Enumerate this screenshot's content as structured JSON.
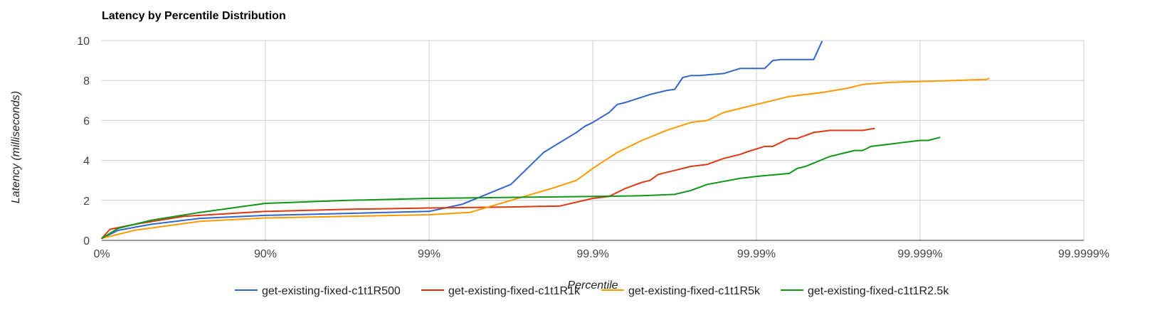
{
  "chart_data": {
    "type": "line",
    "title": "Latency by Percentile Distribution",
    "xlabel": "Percentile",
    "ylabel": "Latency (milliseconds)",
    "x_scale": "percentile-log (nines)",
    "x_tick_labels": [
      "0%",
      "90%",
      "99%",
      "99.9%",
      "99.99%",
      "99.999%",
      "99.9999%"
    ],
    "xlim": [
      0,
      6
    ],
    "ylim": [
      0,
      10
    ],
    "y_ticks": [
      0,
      2,
      4,
      6,
      8,
      10
    ],
    "grid": true,
    "legend_position": "bottom",
    "series": [
      {
        "name": "get-existing-fixed-c1t1R500",
        "color": "#3366cc",
        "x": [
          0,
          0.1,
          0.3,
          0.6,
          1,
          1.5,
          2,
          2.2,
          2.35,
          2.5,
          2.6,
          2.7,
          2.8,
          2.9,
          2.95,
          3.0,
          3.1,
          3.15,
          3.2,
          3.35,
          3.45,
          3.5,
          3.55,
          3.6,
          3.65,
          3.8,
          3.9,
          4.0,
          4.05,
          4.1,
          4.15,
          4.35,
          4.4
        ],
        "y": [
          0.1,
          0.5,
          0.8,
          1.1,
          1.25,
          1.35,
          1.45,
          1.8,
          2.3,
          2.8,
          3.6,
          4.4,
          4.9,
          5.4,
          5.7,
          5.9,
          6.4,
          6.8,
          6.9,
          7.3,
          7.5,
          7.55,
          8.15,
          8.25,
          8.25,
          8.35,
          8.6,
          8.6,
          8.6,
          9.0,
          9.05,
          9.05,
          9.95
        ]
      },
      {
        "name": "get-existing-fixed-c1t1R1k",
        "color": "#dc3912",
        "x": [
          0,
          0.05,
          0.2,
          0.5,
          1,
          1.5,
          2,
          2.5,
          2.8,
          3.0,
          3.1,
          3.2,
          3.3,
          3.35,
          3.4,
          3.5,
          3.6,
          3.7,
          3.8,
          3.9,
          3.95,
          4.05,
          4.1,
          4.2,
          4.25,
          4.35,
          4.45,
          4.65,
          4.72
        ],
        "y": [
          0.1,
          0.55,
          0.8,
          1.2,
          1.45,
          1.55,
          1.62,
          1.67,
          1.72,
          2.1,
          2.2,
          2.6,
          2.9,
          3.0,
          3.3,
          3.5,
          3.7,
          3.8,
          4.1,
          4.3,
          4.45,
          4.7,
          4.7,
          5.1,
          5.1,
          5.4,
          5.5,
          5.5,
          5.6
        ]
      },
      {
        "name": "get-existing-fixed-c1t1R5k",
        "color": "#ff9900",
        "x": [
          0,
          0.2,
          0.6,
          1,
          1.5,
          2,
          2.25,
          2.5,
          2.75,
          2.9,
          3.0,
          3.15,
          3.3,
          3.45,
          3.6,
          3.7,
          3.8,
          3.9,
          4.0,
          4.1,
          4.2,
          4.3,
          4.4,
          4.55,
          4.65,
          4.8,
          5.0,
          5.2,
          5.4,
          5.42
        ],
        "y": [
          0.1,
          0.5,
          0.95,
          1.12,
          1.2,
          1.28,
          1.4,
          2.0,
          2.6,
          3.0,
          3.6,
          4.4,
          5.0,
          5.5,
          5.9,
          6.0,
          6.4,
          6.6,
          6.8,
          7.0,
          7.2,
          7.3,
          7.4,
          7.6,
          7.8,
          7.9,
          7.95,
          8.0,
          8.05,
          8.1
        ]
      },
      {
        "name": "get-existing-fixed-c1t1R2.5k",
        "color": "#109618",
        "x": [
          0,
          0.1,
          0.3,
          0.6,
          1,
          1.5,
          2,
          2.5,
          3,
          3.3,
          3.5,
          3.6,
          3.7,
          3.9,
          4.0,
          4.2,
          4.25,
          4.3,
          4.45,
          4.6,
          4.65,
          4.7,
          4.8,
          5.0,
          5.05,
          5.12
        ],
        "y": [
          0.1,
          0.6,
          1.0,
          1.4,
          1.85,
          2.0,
          2.1,
          2.15,
          2.2,
          2.23,
          2.3,
          2.5,
          2.8,
          3.1,
          3.2,
          3.35,
          3.6,
          3.7,
          4.2,
          4.5,
          4.5,
          4.7,
          4.8,
          5.0,
          5.0,
          5.15
        ]
      }
    ]
  }
}
